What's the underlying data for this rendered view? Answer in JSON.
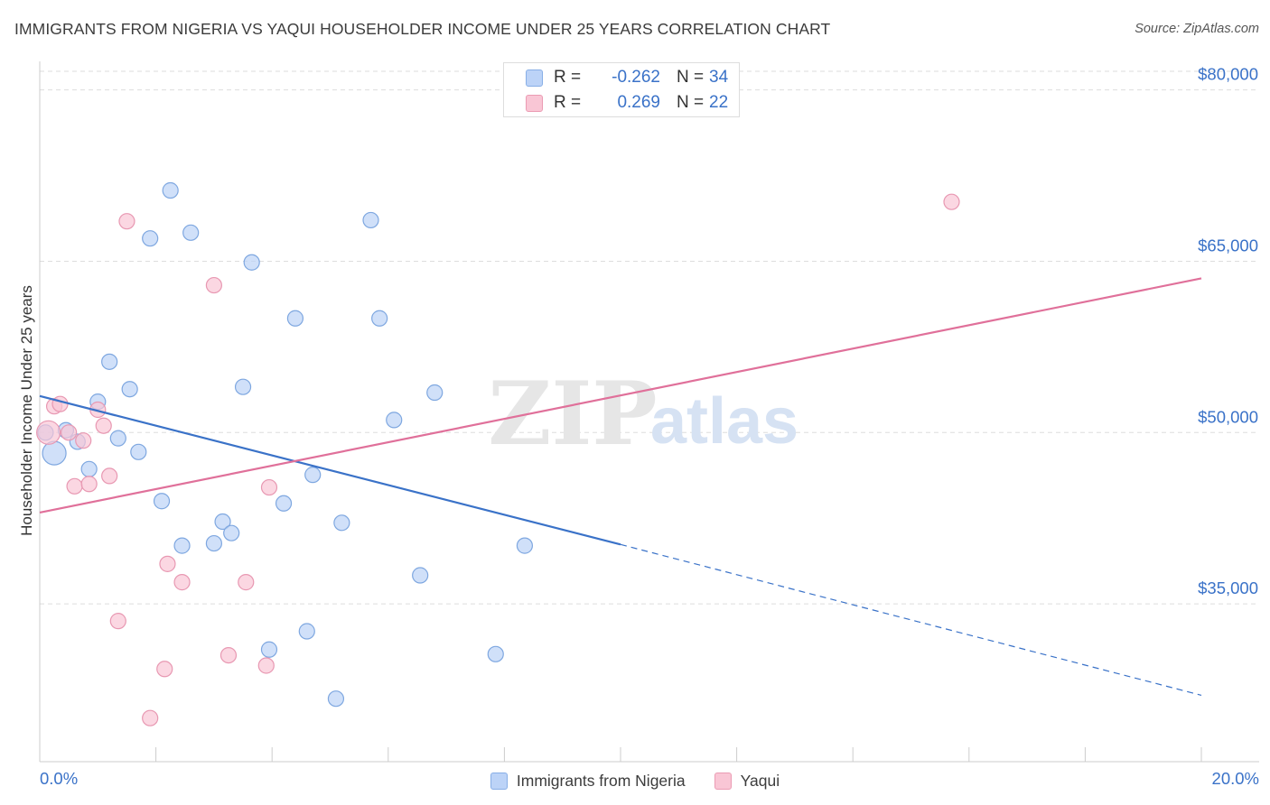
{
  "title": "IMMIGRANTS FROM NIGERIA VS YAQUI HOUSEHOLDER INCOME UNDER 25 YEARS CORRELATION CHART",
  "source": "Source: ZipAtlas.com",
  "watermark": {
    "zip": "ZIP",
    "atlas": "atlas"
  },
  "colors": {
    "blue": "#3a72c8",
    "blue_fill": "#bcd3f7",
    "pink": "#e0709a",
    "pink_fill": "#f9c6d5",
    "grid": "#dddddd",
    "tick_label": "#3a72c8"
  },
  "stats": {
    "series1": {
      "r_label": "R =",
      "r_value": "-0.262",
      "n_label": "N =",
      "n_value": "34"
    },
    "series2": {
      "r_label": "R =",
      "r_value": "0.269",
      "n_label": "N =",
      "n_value": "22"
    }
  },
  "legend": {
    "series1": "Immigrants from Nigeria",
    "series2": "Yaqui"
  },
  "chart_data": {
    "type": "scatter",
    "title": "IMMIGRANTS FROM NIGERIA VS YAQUI HOUSEHOLDER INCOME UNDER 25 YEARS CORRELATION CHART",
    "xlabel": "",
    "ylabel": "Householder Income Under 25 years",
    "xlim": [
      0,
      20
    ],
    "ylim": [
      21500,
      82500
    ],
    "x_tick_labels": [
      "0.0%",
      "20.0%"
    ],
    "y_ticks": [
      35000,
      50000,
      65000,
      80000
    ],
    "y_tick_labels": [
      "$35,000",
      "$50,000",
      "$65,000",
      "$80,000"
    ],
    "grid": true,
    "series": [
      {
        "name": "Immigrants from Nigeria",
        "color": "#3a72c8",
        "points": [
          [
            0.1,
            50000
          ],
          [
            0.25,
            48200
          ],
          [
            0.45,
            50200
          ],
          [
            0.65,
            49200
          ],
          [
            0.85,
            46800
          ],
          [
            1.0,
            52700
          ],
          [
            1.2,
            56200
          ],
          [
            1.35,
            49500
          ],
          [
            1.55,
            53800
          ],
          [
            1.7,
            48300
          ],
          [
            1.9,
            67000
          ],
          [
            2.1,
            44000
          ],
          [
            2.25,
            71200
          ],
          [
            2.45,
            40100
          ],
          [
            2.6,
            67500
          ],
          [
            3.0,
            40300
          ],
          [
            3.15,
            42200
          ],
          [
            3.3,
            41200
          ],
          [
            3.5,
            54000
          ],
          [
            3.65,
            64900
          ],
          [
            3.95,
            31000
          ],
          [
            4.2,
            43800
          ],
          [
            4.4,
            60000
          ],
          [
            4.6,
            32600
          ],
          [
            4.7,
            46300
          ],
          [
            5.1,
            26700
          ],
          [
            5.2,
            42100
          ],
          [
            5.7,
            68600
          ],
          [
            5.85,
            60000
          ],
          [
            6.1,
            51100
          ],
          [
            6.55,
            37500
          ],
          [
            6.8,
            53500
          ],
          [
            7.85,
            30600
          ],
          [
            8.35,
            40100
          ]
        ],
        "trend": {
          "x0": 0,
          "y0": 53200,
          "x1": 10,
          "y1": 40200,
          "dashed_to_x": 20,
          "dashed_to_y": 27000
        }
      },
      {
        "name": "Yaqui",
        "color": "#e0709a",
        "points": [
          [
            0.15,
            50000
          ],
          [
            0.25,
            52300
          ],
          [
            0.35,
            52500
          ],
          [
            0.5,
            50000
          ],
          [
            0.6,
            45300
          ],
          [
            0.75,
            49300
          ],
          [
            0.85,
            45500
          ],
          [
            1.0,
            52000
          ],
          [
            1.1,
            50600
          ],
          [
            1.2,
            46200
          ],
          [
            1.35,
            33500
          ],
          [
            1.5,
            68500
          ],
          [
            1.9,
            25000
          ],
          [
            2.15,
            29300
          ],
          [
            2.2,
            38500
          ],
          [
            2.45,
            36900
          ],
          [
            3.0,
            62900
          ],
          [
            3.25,
            30500
          ],
          [
            3.55,
            36900
          ],
          [
            3.9,
            29600
          ],
          [
            3.95,
            45200
          ],
          [
            15.7,
            70200
          ]
        ],
        "trend": {
          "x0": 0,
          "y0": 43000,
          "x1": 20,
          "y1": 63500
        }
      }
    ]
  }
}
